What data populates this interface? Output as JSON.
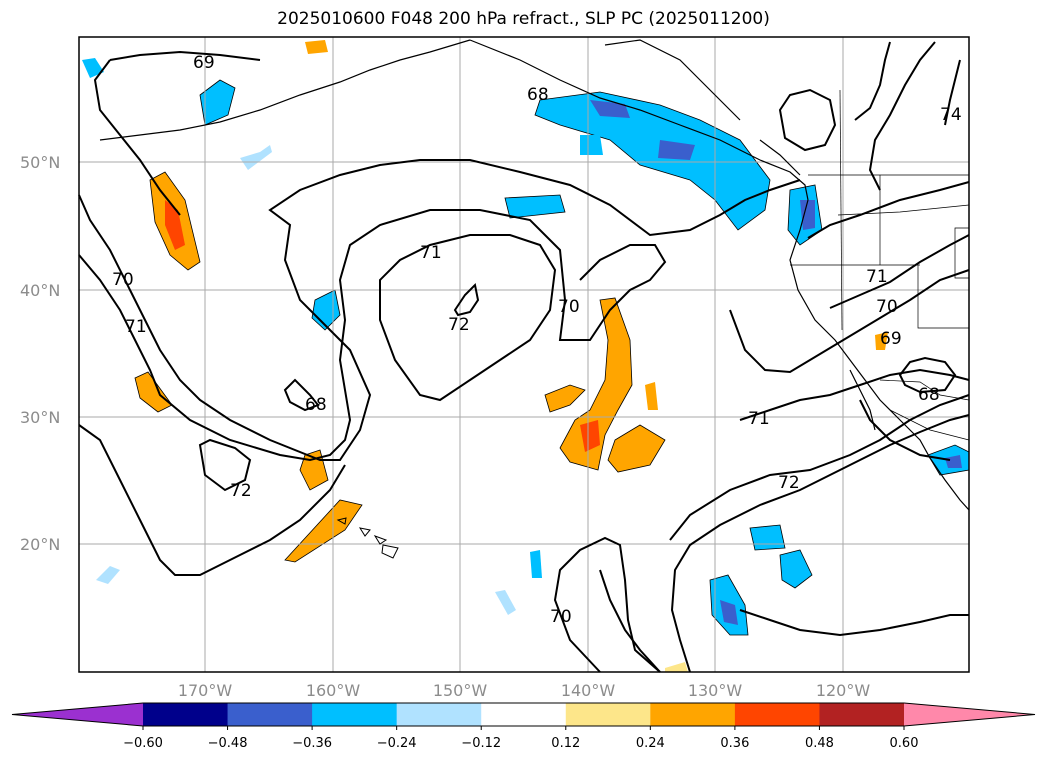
{
  "title": "2025010600 F048 200 hPa refract., SLP PC (2025011200)",
  "latitude_labels": [
    "50°N",
    "40°N",
    "30°N",
    "20°N"
  ],
  "longitude_labels": [
    "170°W",
    "160°W",
    "150°W",
    "140°W",
    "130°W",
    "120°W"
  ],
  "contour_labels": [
    "69",
    "68",
    "74",
    "70",
    "71",
    "72",
    "71",
    "70",
    "68",
    "72",
    "71",
    "72",
    "70",
    "70",
    "69",
    "71",
    "68"
  ],
  "colorbar": {
    "tick_labels": [
      "−0.60",
      "−0.48",
      "−0.36",
      "−0.24",
      "−0.12",
      "0.12",
      "0.24",
      "0.36",
      "0.48",
      "0.60"
    ],
    "colors": [
      "#9b30d0",
      "#00008b",
      "#3a5fcd",
      "#00bfff",
      "#b0e2ff",
      "#ffffff",
      "#fde68a",
      "#ffa500",
      "#ff4500",
      "#b22222",
      "#ff88aa"
    ]
  }
}
